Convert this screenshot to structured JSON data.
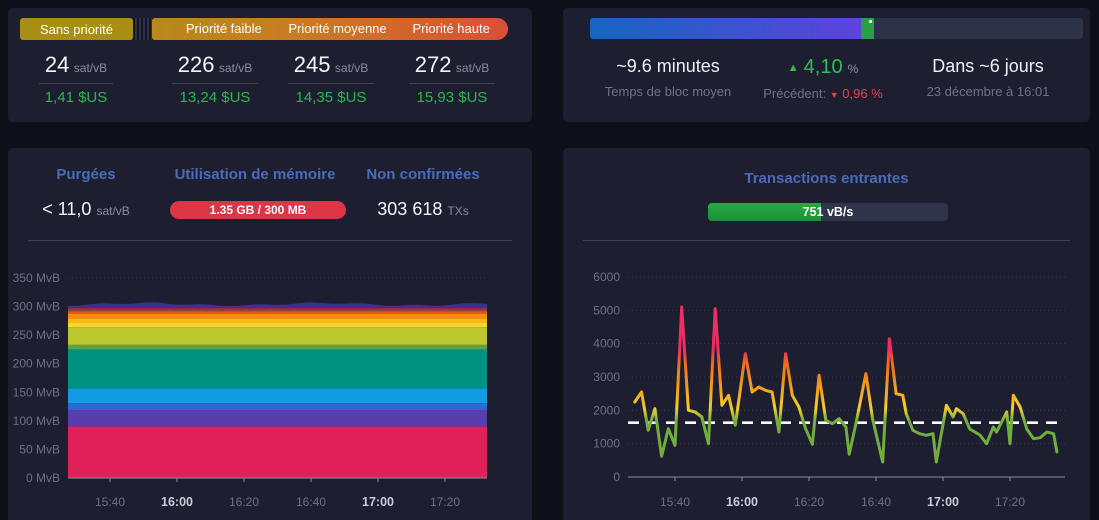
{
  "fees": {
    "tiers": [
      {
        "label": "Sans priorité",
        "rate": "24",
        "unit": "sat/vB",
        "price": "1,41 $US"
      },
      {
        "label": "Priorité faible",
        "rate": "226",
        "unit": "sat/vB",
        "price": "13,24 $US"
      },
      {
        "label": "Priorité moyenne",
        "rate": "245",
        "unit": "sat/vB",
        "price": "14,35 $US"
      },
      {
        "label": "Priorité haute",
        "rate": "272",
        "unit": "sat/vB",
        "price": "15,93 $US"
      }
    ]
  },
  "difficulty": {
    "progress_percent": 55,
    "marker_percent": 2.6,
    "now_tick_percent": 56.6,
    "block_time": {
      "value": "~9.6 minutes",
      "label": "Temps de bloc moyen"
    },
    "change": {
      "arrow": "▲",
      "value": "4,10",
      "unit": "%",
      "previous_label": "Précédent:",
      "previous_arrow": "▼",
      "previous_value": "0,96 %"
    },
    "retarget": {
      "value": "Dans ~6 jours",
      "date": "23 décembre à 16:01"
    }
  },
  "mempool": {
    "purged_header": "Purgées",
    "memory_header": "Utilisation de mémoire",
    "unconfirmed_header": "Non confirmées",
    "purged_value": "< 11,0",
    "purged_unit": "sat/vB",
    "memory_value": "1.35 GB / 300 MB",
    "unconfirmed_value": "303 618",
    "unconfirmed_unit": "TXs"
  },
  "incoming": {
    "title": "Transactions entrantes",
    "badge_value": "751 vB/s",
    "badge_fill_percent": 47
  },
  "chart_data": [
    {
      "type": "area",
      "stacked": true,
      "title": "Mempool size by fee range",
      "ylim": [
        0,
        350
      ],
      "y_ticks": [
        {
          "value": 0,
          "label": "0 MvB"
        },
        {
          "value": 50,
          "label": "50 MvB"
        },
        {
          "value": 100,
          "label": "100 MvB"
        },
        {
          "value": 150,
          "label": "150 MvB"
        },
        {
          "value": 200,
          "label": "200 MvB"
        },
        {
          "value": 250,
          "label": "250 MvB"
        },
        {
          "value": 300,
          "label": "300 MvB"
        },
        {
          "value": 350,
          "label": "350 MvB"
        }
      ],
      "x_ticks": [
        {
          "label": "15:40",
          "bold": false
        },
        {
          "label": "16:00",
          "bold": true
        },
        {
          "label": "16:20",
          "bold": false
        },
        {
          "label": "16:40",
          "bold": false
        },
        {
          "label": "17:00",
          "bold": true
        },
        {
          "label": "17:20",
          "bold": false
        }
      ],
      "grid": true,
      "layers": [
        {
          "from": 0,
          "to": 90,
          "color": "#e02059"
        },
        {
          "from": 90,
          "to": 119,
          "color": "#5a3dad"
        },
        {
          "from": 119,
          "to": 131,
          "color": "#2e68d3"
        },
        {
          "from": 131,
          "to": 157,
          "color": "#119be2"
        },
        {
          "from": 157,
          "to": 225,
          "color": "#009280"
        },
        {
          "from": 225,
          "to": 233,
          "color": "#5fa33e"
        },
        {
          "from": 233,
          "to": 264,
          "color": "#bdc831"
        },
        {
          "from": 264,
          "to": 272,
          "color": "#f5d62f"
        },
        {
          "from": 272,
          "to": 279,
          "color": "#fdb714"
        },
        {
          "from": 279,
          "to": 287,
          "color": "#f78d07"
        },
        {
          "from": 287,
          "to": 292,
          "color": "#df5a1e"
        },
        {
          "from": 292,
          "to": 295,
          "color": "#8c4a3c"
        },
        {
          "from": 295,
          "to": 298,
          "color": "#9c2744"
        },
        {
          "from": 298,
          "to": 301,
          "color": "#4c2d8a"
        },
        {
          "from": 301,
          "to": 304,
          "color": "#263a8f"
        }
      ]
    },
    {
      "type": "line",
      "title": "Transactions entrantes (vB/s)",
      "ylim": [
        0,
        6000
      ],
      "y_ticks": [
        {
          "value": 0,
          "label": "0"
        },
        {
          "value": 1000,
          "label": "1000"
        },
        {
          "value": 2000,
          "label": "2000"
        },
        {
          "value": 3000,
          "label": "3000"
        },
        {
          "value": 4000,
          "label": "4000"
        },
        {
          "value": 5000,
          "label": "5000"
        },
        {
          "value": 6000,
          "label": "6000"
        }
      ],
      "x_ticks": [
        {
          "label": "15:40",
          "bold": false
        },
        {
          "label": "16:00",
          "bold": true
        },
        {
          "label": "16:20",
          "bold": false
        },
        {
          "label": "16:40",
          "bold": false
        },
        {
          "label": "17:00",
          "bold": true
        },
        {
          "label": "17:20",
          "bold": false
        }
      ],
      "grid": true,
      "threshold": 1630,
      "x_minutes_range": [
        0,
        126
      ],
      "points": [
        [
          0,
          2250
        ],
        [
          2,
          2550
        ],
        [
          4,
          1400
        ],
        [
          6,
          2050
        ],
        [
          8,
          620
        ],
        [
          10,
          1450
        ],
        [
          12,
          950
        ],
        [
          14,
          5100
        ],
        [
          16,
          2000
        ],
        [
          18,
          1950
        ],
        [
          20,
          1800
        ],
        [
          22,
          1000
        ],
        [
          24,
          5050
        ],
        [
          26,
          2150
        ],
        [
          28,
          2450
        ],
        [
          30,
          1550
        ],
        [
          33,
          3700
        ],
        [
          35,
          2550
        ],
        [
          37,
          2700
        ],
        [
          39,
          2600
        ],
        [
          41,
          2550
        ],
        [
          43,
          1350
        ],
        [
          45,
          3700
        ],
        [
          47,
          2450
        ],
        [
          49,
          2100
        ],
        [
          51,
          1450
        ],
        [
          53,
          980
        ],
        [
          55,
          3050
        ],
        [
          57,
          1700
        ],
        [
          59,
          1600
        ],
        [
          61,
          1750
        ],
        [
          63,
          1500
        ],
        [
          64,
          680
        ],
        [
          66,
          1600
        ],
        [
          69,
          3100
        ],
        [
          71,
          1740
        ],
        [
          74,
          450
        ],
        [
          76,
          4150
        ],
        [
          78,
          2500
        ],
        [
          80,
          2450
        ],
        [
          81,
          1900
        ],
        [
          83,
          1400
        ],
        [
          85,
          1300
        ],
        [
          87,
          1250
        ],
        [
          89,
          1300
        ],
        [
          90,
          450
        ],
        [
          93,
          2150
        ],
        [
          95,
          1800
        ],
        [
          96,
          2050
        ],
        [
          98,
          1900
        ],
        [
          100,
          1440
        ],
        [
          103,
          1260
        ],
        [
          105,
          1000
        ],
        [
          107,
          1500
        ],
        [
          108,
          1350
        ],
        [
          111,
          1950
        ],
        [
          112,
          1000
        ],
        [
          113,
          2455
        ],
        [
          115,
          2100
        ],
        [
          117,
          1440
        ],
        [
          119,
          1150
        ],
        [
          121,
          1180
        ],
        [
          123,
          1350
        ],
        [
          125,
          1300
        ],
        [
          126,
          750
        ]
      ],
      "color_scale": [
        {
          "value": 0,
          "color": "#72ad3d"
        },
        {
          "value": 1700,
          "color": "#72ad3d"
        },
        {
          "value": 2050,
          "color": "#f2cf2a"
        },
        {
          "value": 2700,
          "color": "#f59d18"
        },
        {
          "value": 3400,
          "color": "#ef6c1d"
        },
        {
          "value": 3800,
          "color": "#ee2e62"
        },
        {
          "value": 6000,
          "color": "#ee2e62"
        }
      ]
    }
  ]
}
